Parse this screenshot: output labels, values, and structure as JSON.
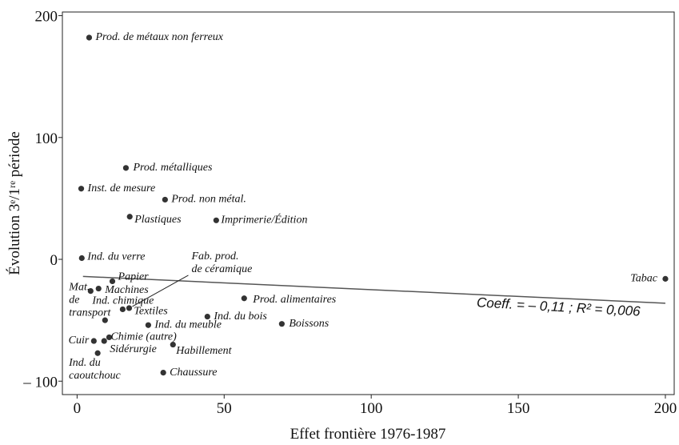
{
  "chart_data": {
    "type": "scatter",
    "x_label": "Effet frontière 1976-1987",
    "y_label": "Évolution 3ᵉ/1ʳᵉ période",
    "labels": [
      "Prod. de métaux non ferreux",
      "Prod. métalliques",
      "Inst. de mesure",
      "Prod. non métal.",
      "Plastiques",
      "Imprimerie/Édition",
      "Ind. du verre",
      "Papier",
      "Mat. de transport",
      "Machines",
      "Ind. chimique",
      "Fab. prod. de céramique",
      "Textiles",
      "Tabac",
      "Prod. alimentaires",
      "Ind. du bois",
      "Boissons",
      "Ind. du meuble",
      "Cuir",
      "Chimie (autre)",
      "Sidérurgie",
      "Ind. du caoutchouc",
      "Habillement",
      "Chaussure"
    ],
    "x": [
      4.1,
      16.6,
      1.4,
      29.9,
      17.9,
      47.3,
      1.6,
      12,
      4.6,
      7.3,
      9.5,
      17.7,
      15.5,
      200,
      56.8,
      44.3,
      69.6,
      24.2,
      5.7,
      10.9,
      9.2,
      7,
      32.6,
      29.3
    ],
    "y": [
      182,
      75,
      58,
      49,
      35,
      32,
      1,
      -18,
      -26,
      -24,
      -50,
      -40,
      -41,
      -16,
      -32,
      -47,
      -53,
      -54,
      -67,
      -64,
      -67,
      -77,
      -70,
      -93
    ],
    "color": "#333333",
    "trendline": {
      "x": [
        2,
        200
      ],
      "y": [
        -14,
        -36
      ]
    },
    "annotation": "Coeff. = – 0,11  ;  R² = 0,006",
    "xlim": [
      -5,
      203
    ],
    "ylim": [
      -111,
      203
    ],
    "xticks": [
      0,
      50,
      100,
      150,
      200
    ],
    "yticks": [
      {
        "value": -100,
        "label": "– 100"
      },
      0,
      100,
      200
    ]
  }
}
